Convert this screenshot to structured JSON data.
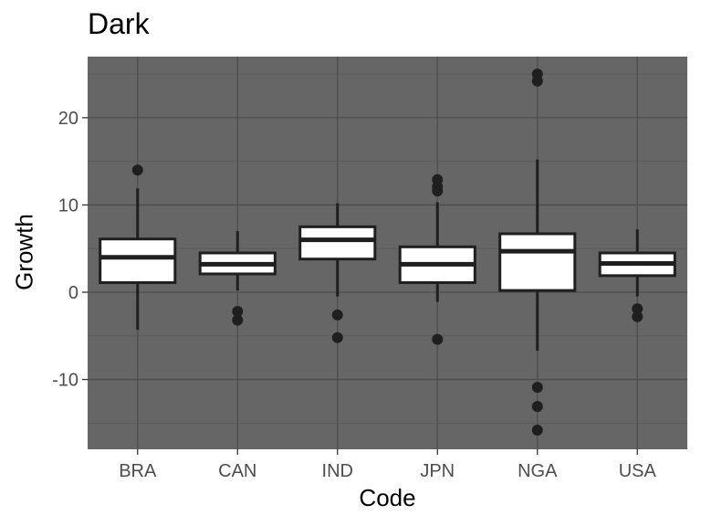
{
  "chart_data": {
    "type": "boxplot",
    "title": "Dark",
    "xlabel": "Code",
    "ylabel": "Growth",
    "categories": [
      "BRA",
      "CAN",
      "IND",
      "JPN",
      "NGA",
      "USA"
    ],
    "ylim": [
      -18,
      27
    ],
    "yticks": [
      -10,
      0,
      10,
      20
    ],
    "ytick_labels": [
      "-10",
      "0",
      "10",
      "20"
    ],
    "grid": true,
    "colors": {
      "panel_bg": "#666666",
      "grid_major": "#4d4d4d",
      "grid_minor": "#5b5b5b",
      "box_fill": "#ffffff",
      "box_line": "#1f1f1f",
      "outlier": "#1f1f1f"
    },
    "boxes": [
      {
        "category": "BRA",
        "whisker_low": -4.3,
        "q1": 1.1,
        "median": 4.0,
        "q3": 6.1,
        "whisker_high": 11.9,
        "outliers": [
          14.0
        ]
      },
      {
        "category": "CAN",
        "whisker_low": 0.2,
        "q1": 2.1,
        "median": 3.2,
        "q3": 4.5,
        "whisker_high": 7.0,
        "outliers": [
          -2.2,
          -3.2
        ]
      },
      {
        "category": "IND",
        "whisker_low": -0.5,
        "q1": 3.8,
        "median": 6.0,
        "q3": 7.5,
        "whisker_high": 10.2,
        "outliers": [
          -2.6,
          -5.2
        ]
      },
      {
        "category": "JPN",
        "whisker_low": -1.1,
        "q1": 1.1,
        "median": 3.2,
        "q3": 5.2,
        "whisker_high": 10.3,
        "outliers": [
          11.6,
          12.1,
          12.9,
          -5.4
        ]
      },
      {
        "category": "NGA",
        "whisker_low": -6.7,
        "q1": 0.2,
        "median": 4.7,
        "q3": 6.7,
        "whisker_high": 15.2,
        "outliers": [
          24.2,
          25.0,
          -10.9,
          -13.1,
          -15.8
        ]
      },
      {
        "category": "USA",
        "whisker_low": -0.5,
        "q1": 1.9,
        "median": 3.3,
        "q3": 4.5,
        "whisker_high": 7.2,
        "outliers": [
          -1.9,
          -2.8
        ]
      }
    ]
  }
}
